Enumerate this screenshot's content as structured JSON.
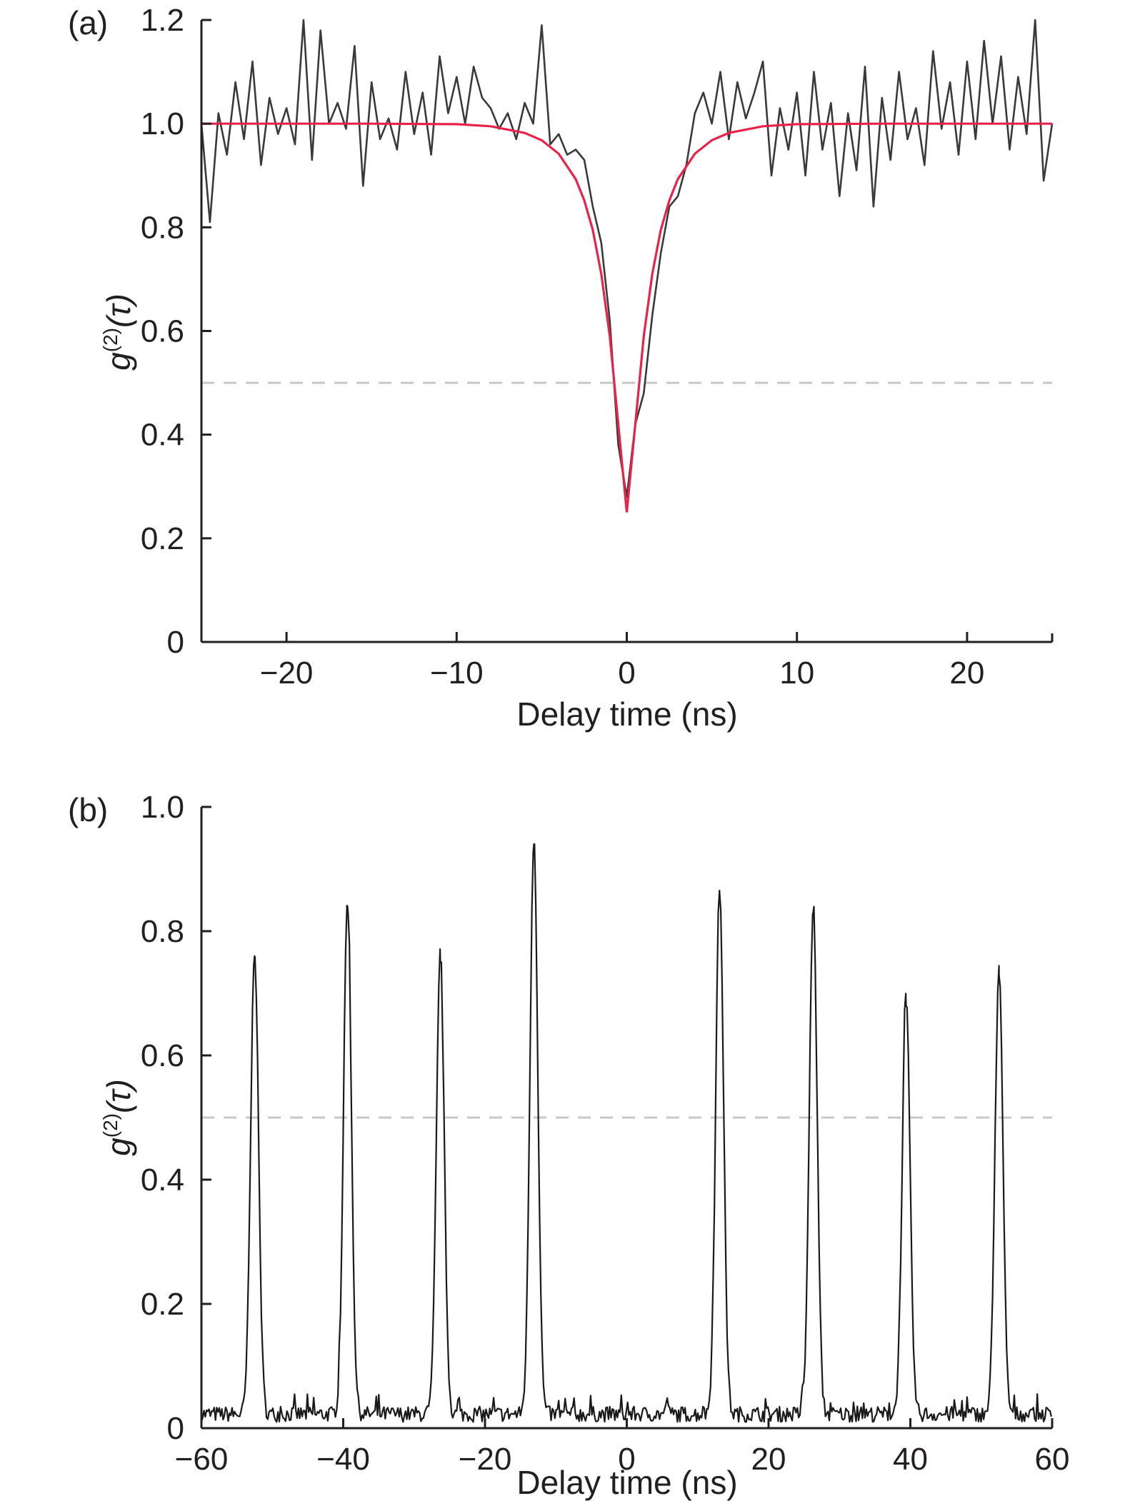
{
  "chart_data": [
    {
      "type": "line",
      "panel_label": "(a)",
      "xlabel": "Delay time (ns)",
      "ylabel_main": "g",
      "ylabel_sup": "(2)",
      "ylabel_arg": "(τ)",
      "xlim": [
        -25,
        25
      ],
      "ylim": [
        0,
        1.2
      ],
      "xticks": [
        -20,
        -10,
        0,
        10,
        20
      ],
      "xtick_labels": [
        "−20",
        "−10",
        "0",
        "10",
        "20"
      ],
      "yticks": [
        0,
        0.2,
        0.4,
        0.6,
        0.8,
        1.0,
        1.2
      ],
      "ytick_labels": [
        "0",
        "0.2",
        "0.4",
        "0.6",
        "0.8",
        "1.0",
        "1.2"
      ],
      "reference_line": {
        "y": 0.5,
        "style": "dashed",
        "color": "#c8c8c8"
      },
      "colors": {
        "data": "#3a3a3a",
        "fit": "#e8234a"
      },
      "series": [
        {
          "kind": "measured",
          "x": [
            -25,
            -24.5,
            -24,
            -23.5,
            -23,
            -22.5,
            -22,
            -21.5,
            -21,
            -20.5,
            -20,
            -19.5,
            -19,
            -18.5,
            -18,
            -17.5,
            -17,
            -16.5,
            -16,
            -15.5,
            -15,
            -14.5,
            -14,
            -13.5,
            -13,
            -12.5,
            -12,
            -11.5,
            -11,
            -10.5,
            -10,
            -9.5,
            -9,
            -8.5,
            -8,
            -7.5,
            -7,
            -6.5,
            -6,
            -5.5,
            -5,
            -4.5,
            -4,
            -3.5,
            -3,
            -2.5,
            -2,
            -1.5,
            -1,
            -0.5,
            0,
            0.5,
            1,
            1.5,
            2,
            2.5,
            3,
            3.5,
            4,
            4.5,
            5,
            5.5,
            6,
            6.5,
            7,
            7.5,
            8,
            8.5,
            9,
            9.5,
            10,
            10.5,
            11,
            11.5,
            12,
            12.5,
            13,
            13.5,
            14,
            14.5,
            15,
            15.5,
            16,
            16.5,
            17,
            17.5,
            18,
            18.5,
            19,
            19.5,
            20,
            20.5,
            21,
            21.5,
            22,
            22.5,
            23,
            23.5,
            24,
            24.5,
            25
          ],
          "y": [
            1.0,
            0.81,
            1.02,
            0.94,
            1.08,
            0.97,
            1.12,
            0.92,
            1.05,
            0.98,
            1.03,
            0.96,
            1.2,
            0.93,
            1.18,
            1.0,
            1.04,
            0.99,
            1.15,
            0.88,
            1.08,
            0.97,
            1.01,
            0.95,
            1.1,
            0.98,
            1.06,
            0.94,
            1.13,
            1.02,
            1.09,
            1.0,
            1.11,
            1.05,
            1.03,
            0.99,
            1.02,
            0.97,
            1.04,
            1.0,
            1.19,
            0.96,
            0.98,
            0.94,
            0.95,
            0.93,
            0.84,
            0.77,
            0.62,
            0.38,
            0.28,
            0.42,
            0.48,
            0.63,
            0.75,
            0.84,
            0.86,
            0.92,
            1.02,
            1.06,
            1.0,
            1.1,
            0.97,
            1.08,
            1.01,
            1.06,
            1.12,
            0.9,
            1.03,
            0.95,
            1.06,
            0.9,
            1.1,
            0.95,
            1.04,
            0.86,
            1.02,
            0.91,
            1.11,
            0.84,
            1.05,
            0.93,
            1.1,
            0.97,
            1.03,
            0.92,
            1.14,
            0.99,
            1.08,
            0.94,
            1.12,
            0.97,
            1.16,
            1.0,
            1.13,
            0.95,
            1.09,
            0.98,
            1.2,
            0.89,
            1.0
          ]
        },
        {
          "kind": "fit",
          "x": [
            -25,
            -20,
            -15,
            -10,
            -8,
            -6,
            -5,
            -4,
            -3,
            -2.5,
            -2,
            -1.5,
            -1,
            -0.5,
            0,
            0.5,
            1,
            1.5,
            2,
            2.5,
            3,
            4,
            5,
            6,
            8,
            10,
            15,
            20,
            25
          ],
          "y": [
            1.0,
            1.0,
            1.0,
            0.999,
            0.995,
            0.982,
            0.968,
            0.942,
            0.893,
            0.852,
            0.795,
            0.71,
            0.59,
            0.42,
            0.25,
            0.42,
            0.59,
            0.71,
            0.795,
            0.852,
            0.893,
            0.942,
            0.968,
            0.982,
            0.995,
            0.999,
            1.0,
            1.0,
            1.0
          ]
        }
      ]
    },
    {
      "type": "line",
      "panel_label": "(b)",
      "xlabel": "Delay time (ns)",
      "ylabel_main": "g",
      "ylabel_sup": "(2)",
      "ylabel_arg": "(τ)",
      "xlim": [
        -60,
        60
      ],
      "ylim": [
        0,
        1.0
      ],
      "xticks": [
        -60,
        -40,
        -20,
        0,
        20,
        40,
        60
      ],
      "xtick_labels": [
        "−60",
        "−40",
        "−20",
        "0",
        "20",
        "40",
        "60"
      ],
      "yticks": [
        0,
        0.2,
        0.4,
        0.6,
        0.8,
        1.0
      ],
      "ytick_labels": [
        "0",
        "0.2",
        "0.4",
        "0.6",
        "0.8",
        "1.0"
      ],
      "reference_line": {
        "y": 0.5,
        "style": "dashed",
        "color": "#c8c8c8"
      },
      "colors": {
        "data": "#1a1a1a"
      },
      "baseline": 0.01,
      "peak_width_ns": 0.55,
      "peaks": [
        {
          "x": -52.5,
          "y": 0.76
        },
        {
          "x": -39.4,
          "y": 0.84
        },
        {
          "x": -26.3,
          "y": 0.75
        },
        {
          "x": -13.1,
          "y": 0.94
        },
        {
          "x": 13.1,
          "y": 0.86
        },
        {
          "x": 26.3,
          "y": 0.83
        },
        {
          "x": 39.4,
          "y": 0.68
        },
        {
          "x": 52.5,
          "y": 0.73
        }
      ]
    }
  ]
}
